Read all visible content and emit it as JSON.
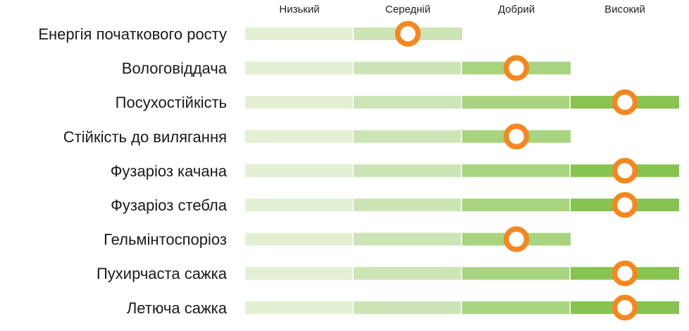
{
  "chart_data": {
    "type": "bar",
    "levels": [
      "Низький",
      "Середній",
      "Добрий",
      "Високий"
    ],
    "categories": [
      "Енергія початкового росту",
      "Вологовіддача",
      "Посухостійкість",
      "Стійкість до вилягання",
      "Фузаріоз качана",
      "Фузаріоз стебла",
      "Гельмінтоспоріоз",
      "Пухирчаста сажка",
      "Летюча сажка"
    ],
    "values": [
      1.5,
      2.5,
      3.5,
      2.5,
      3.5,
      3.5,
      2.5,
      3.5,
      3.5
    ],
    "bar_extent": [
      2,
      3,
      4,
      3,
      4,
      4,
      3,
      4,
      4
    ],
    "xlim": [
      0,
      4
    ],
    "colors": {
      "segments": [
        "#e3f0d3",
        "#cde5b6",
        "#a9d47f",
        "#86c44f"
      ],
      "marker_ring": "#f58720",
      "marker_center": "#ffffff"
    },
    "grid": false,
    "legend": "none"
  }
}
